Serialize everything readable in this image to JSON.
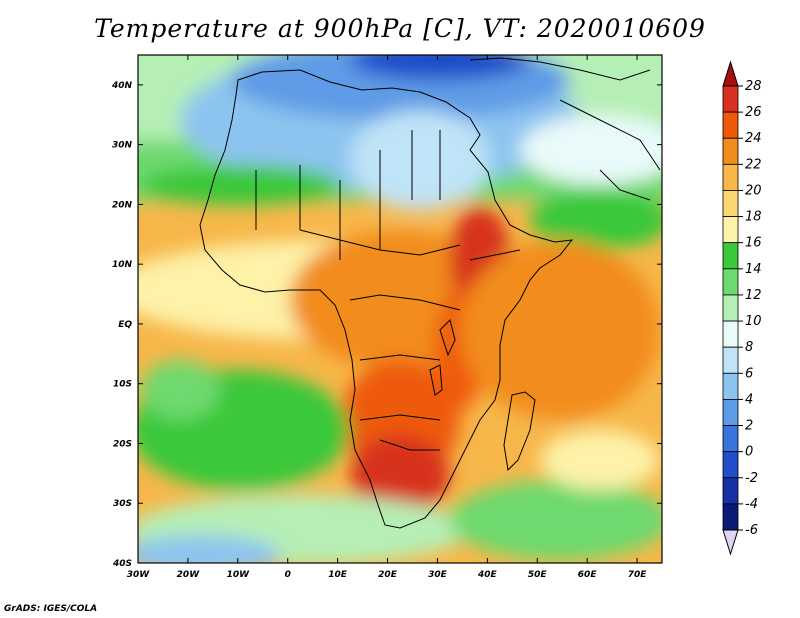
{
  "title": "Temperature at 900hPa [C], VT: 2020010609",
  "credit": "GrADS: IGES/COLA",
  "map": {
    "lon_range": [
      -30,
      75
    ],
    "lat_range": [
      -40,
      45
    ],
    "lon_ticks": [
      {
        "value": -30,
        "label": "30W"
      },
      {
        "value": -20,
        "label": "20W"
      },
      {
        "value": -10,
        "label": "10W"
      },
      {
        "value": 0,
        "label": "0"
      },
      {
        "value": 10,
        "label": "10E"
      },
      {
        "value": 20,
        "label": "20E"
      },
      {
        "value": 30,
        "label": "30E"
      },
      {
        "value": 40,
        "label": "40E"
      },
      {
        "value": 50,
        "label": "50E"
      },
      {
        "value": 60,
        "label": "60E"
      },
      {
        "value": 70,
        "label": "70E"
      }
    ],
    "lat_ticks": [
      {
        "value": 40,
        "label": "40N"
      },
      {
        "value": 30,
        "label": "30N"
      },
      {
        "value": 20,
        "label": "20N"
      },
      {
        "value": 10,
        "label": "10N"
      },
      {
        "value": 0,
        "label": "EQ"
      },
      {
        "value": -10,
        "label": "10S"
      },
      {
        "value": -20,
        "label": "20S"
      },
      {
        "value": -30,
        "label": "30S"
      },
      {
        "value": -40,
        "label": "40S"
      }
    ]
  },
  "colorbar": {
    "labels": [
      "28",
      "26",
      "24",
      "22",
      "20",
      "18",
      "16",
      "14",
      "12",
      "10",
      "8",
      "6",
      "4",
      "2",
      "0",
      "-2",
      "-4",
      "-6"
    ],
    "colors": [
      "#a50f0f",
      "#d7301f",
      "#ee5a0c",
      "#f28c1c",
      "#f7b74a",
      "#fbd774",
      "#fdf2a8",
      "#3bc83b",
      "#6ed96e",
      "#b5efb5",
      "#e9fafa",
      "#bfe3f7",
      "#8dc4ef",
      "#5e9be6",
      "#3a73dc",
      "#1f4ec8",
      "#1630a6",
      "#0b1a75",
      "#ddd5f3"
    ]
  }
}
